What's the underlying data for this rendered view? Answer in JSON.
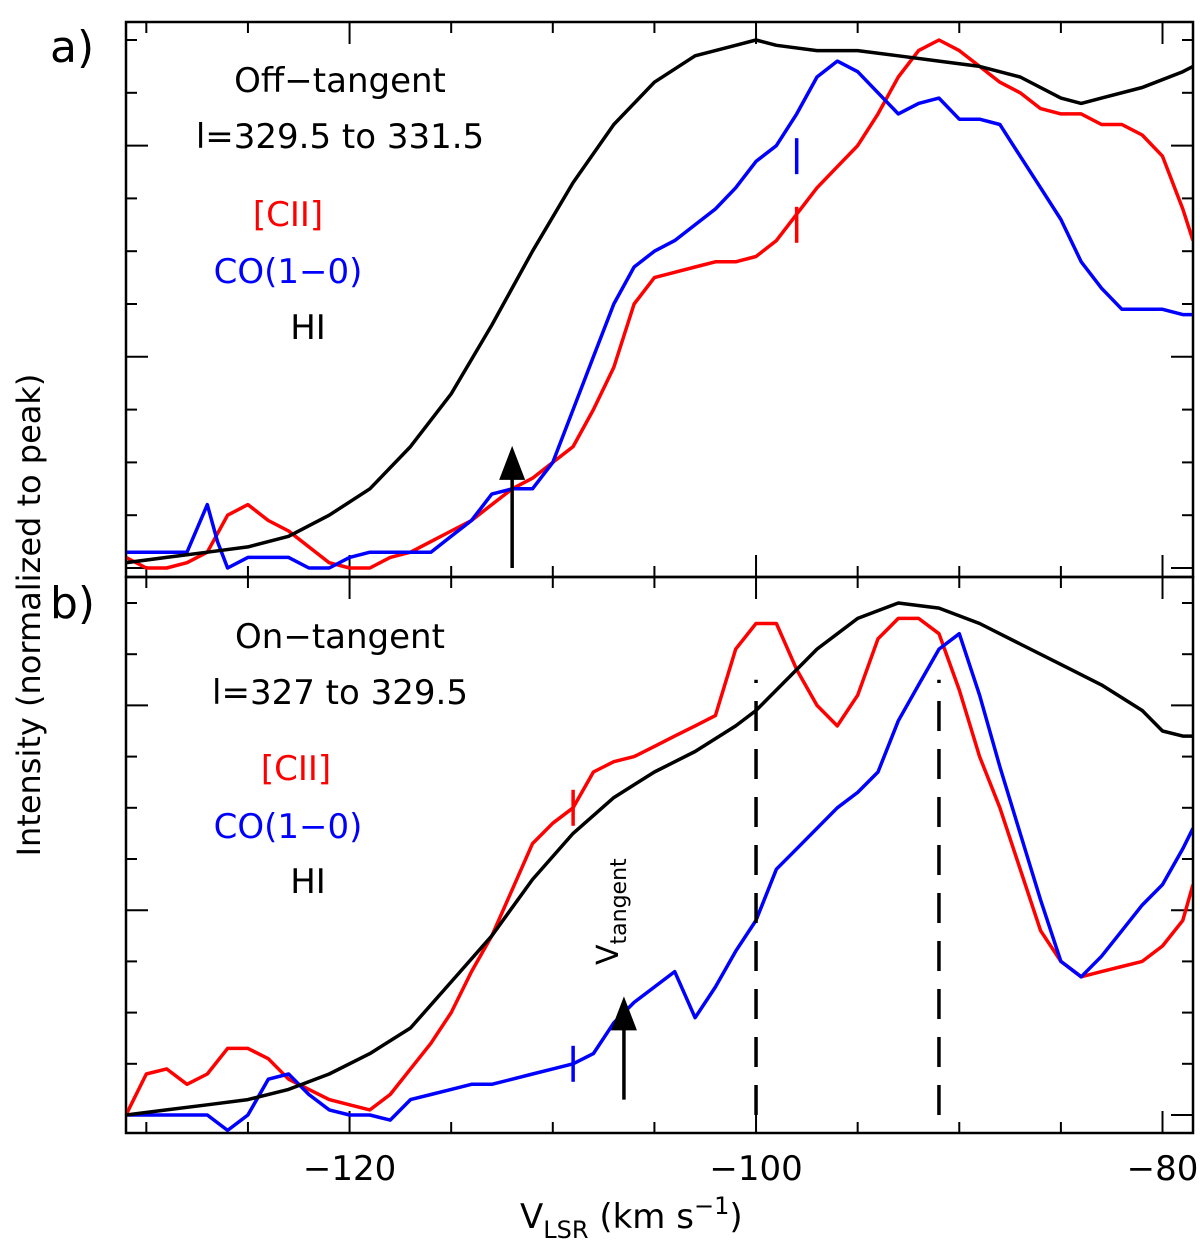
{
  "figure": {
    "ylabel": "Intensity (normalized to peak)",
    "xlabel_main": "V",
    "xlabel_sub": "LSR",
    "xlabel_units": " (km s",
    "xlabel_exp": "−1",
    "xlabel_close": ")",
    "colors": {
      "cii": "#ff0000",
      "co": "#0000ff",
      "hi": "#000000"
    }
  },
  "chart_data": [
    {
      "type": "line",
      "panel": "a)",
      "title_line1": "Off−tangent",
      "title_line2": "l=329.5 to 331.5",
      "legend": [
        "[CII]",
        "CO(1−0)",
        "HI"
      ],
      "xlim": [
        -131,
        -78.5
      ],
      "ylim": [
        0,
        1
      ],
      "xticks": [
        -120,
        -100,
        -80
      ],
      "series": [
        {
          "name": "[CII]",
          "key": "cii",
          "x": [
            -131,
            -130,
            -129,
            -128,
            -127,
            -126,
            -125,
            -124,
            -123,
            -122,
            -121,
            -120,
            -119,
            -118,
            -117,
            -116,
            -115,
            -114,
            -113,
            -112,
            -111,
            -110,
            -109,
            -108,
            -107,
            -106,
            -105,
            -104,
            -103,
            -102,
            -101,
            -100,
            -99,
            -98,
            -97,
            -96,
            -95,
            -94,
            -93,
            -92,
            -91,
            -90,
            -89,
            -88,
            -87,
            -86,
            -85,
            -84,
            -83,
            -82,
            -81,
            -80,
            -79,
            -78.5
          ],
          "values": [
            0.02,
            0.0,
            0.0,
            0.01,
            0.03,
            0.1,
            0.12,
            0.09,
            0.07,
            0.04,
            0.01,
            0.0,
            0.0,
            0.02,
            0.03,
            0.05,
            0.07,
            0.09,
            0.12,
            0.15,
            0.17,
            0.2,
            0.23,
            0.3,
            0.38,
            0.5,
            0.55,
            0.56,
            0.57,
            0.58,
            0.58,
            0.59,
            0.62,
            0.67,
            0.72,
            0.76,
            0.8,
            0.86,
            0.93,
            0.98,
            1.0,
            0.98,
            0.95,
            0.92,
            0.9,
            0.87,
            0.86,
            0.86,
            0.84,
            0.84,
            0.82,
            0.78,
            0.68,
            0.62
          ]
        },
        {
          "name": "CO(1−0)",
          "key": "co",
          "x": [
            -131,
            -130,
            -129,
            -128,
            -127,
            -126.5,
            -126,
            -125,
            -124,
            -123,
            -122,
            -121,
            -120,
            -119,
            -118,
            -117,
            -116,
            -115,
            -114,
            -113,
            -112,
            -111,
            -110,
            -109,
            -108,
            -107,
            -106,
            -105,
            -104,
            -103,
            -102,
            -101,
            -100,
            -99,
            -98,
            -97,
            -96,
            -95,
            -94,
            -93,
            -92,
            -91,
            -90,
            -89,
            -88,
            -87,
            -86,
            -85,
            -84,
            -83,
            -82,
            -81,
            -80,
            -79,
            -78.5
          ],
          "values": [
            0.03,
            0.03,
            0.03,
            0.03,
            0.12,
            0.05,
            0.0,
            0.02,
            0.02,
            0.02,
            0.0,
            0.0,
            0.02,
            0.03,
            0.03,
            0.03,
            0.03,
            0.06,
            0.09,
            0.14,
            0.15,
            0.15,
            0.2,
            0.3,
            0.4,
            0.5,
            0.57,
            0.6,
            0.62,
            0.65,
            0.68,
            0.72,
            0.77,
            0.8,
            0.86,
            0.93,
            0.96,
            0.94,
            0.9,
            0.86,
            0.88,
            0.89,
            0.85,
            0.85,
            0.84,
            0.78,
            0.72,
            0.66,
            0.58,
            0.53,
            0.49,
            0.49,
            0.49,
            0.48,
            0.48
          ]
        },
        {
          "name": "HI",
          "key": "hi",
          "x": [
            -131,
            -129,
            -127,
            -125,
            -123,
            -121,
            -119,
            -117,
            -115,
            -113,
            -111,
            -109,
            -107,
            -105,
            -103,
            -101,
            -100,
            -99,
            -97,
            -95,
            -93,
            -91,
            -89,
            -87,
            -85,
            -84,
            -83,
            -81,
            -79,
            -78.5
          ],
          "values": [
            0.01,
            0.02,
            0.03,
            0.04,
            0.06,
            0.1,
            0.15,
            0.23,
            0.33,
            0.46,
            0.6,
            0.73,
            0.84,
            0.92,
            0.97,
            0.99,
            1.0,
            0.99,
            0.98,
            0.98,
            0.97,
            0.96,
            0.95,
            0.93,
            0.89,
            0.88,
            0.89,
            0.91,
            0.94,
            0.95
          ]
        }
      ],
      "annotations": [
        {
          "type": "arrow",
          "x": -112,
          "y_from": 0.0,
          "y_to": 0.22
        },
        {
          "type": "tick_mark",
          "series": "co",
          "x": -98,
          "y": 0.78
        },
        {
          "type": "tick_mark",
          "series": "cii",
          "x": -98,
          "y": 0.65
        }
      ]
    },
    {
      "type": "line",
      "panel": "b)",
      "title_line1": "On−tangent",
      "title_line2": "l=327 to 329.5",
      "legend": [
        "[CII]",
        "CO(1−0)",
        "HI"
      ],
      "xlim": [
        -131,
        -78.5
      ],
      "ylim": [
        0,
        1
      ],
      "xticks": [
        -120,
        -100,
        -80
      ],
      "vtangent_label": "V",
      "vtangent_sub": "tangent",
      "series": [
        {
          "name": "[CII]",
          "key": "cii",
          "x": [
            -131,
            -130,
            -129,
            -128,
            -127,
            -126,
            -125,
            -124,
            -123,
            -122,
            -121,
            -120,
            -119,
            -118,
            -117,
            -116,
            -115,
            -114,
            -113,
            -112,
            -111,
            -110,
            -109,
            -108,
            -107,
            -106,
            -105,
            -104,
            -103,
            -102,
            -101,
            -100,
            -99,
            -98,
            -97,
            -96,
            -95,
            -94,
            -93,
            -92,
            -91,
            -90,
            -89,
            -88,
            -87,
            -86,
            -85,
            -84,
            -83,
            -82,
            -81,
            -80,
            -79,
            -78.5
          ],
          "values": [
            0.0,
            0.08,
            0.09,
            0.06,
            0.08,
            0.13,
            0.13,
            0.11,
            0.07,
            0.05,
            0.03,
            0.02,
            0.01,
            0.04,
            0.09,
            0.14,
            0.2,
            0.28,
            0.35,
            0.44,
            0.53,
            0.57,
            0.6,
            0.67,
            0.69,
            0.7,
            0.72,
            0.74,
            0.76,
            0.78,
            0.91,
            0.96,
            0.96,
            0.87,
            0.8,
            0.76,
            0.82,
            0.93,
            0.97,
            0.97,
            0.94,
            0.83,
            0.7,
            0.6,
            0.48,
            0.36,
            0.3,
            0.27,
            0.28,
            0.29,
            0.3,
            0.33,
            0.38,
            0.45
          ]
        },
        {
          "name": "CO(1−0)",
          "key": "co",
          "x": [
            -131,
            -130,
            -129,
            -128,
            -127,
            -126,
            -125,
            -124,
            -123,
            -122,
            -121,
            -120,
            -119,
            -118,
            -117,
            -116,
            -115,
            -114,
            -113,
            -112,
            -111,
            -110,
            -109,
            -108,
            -107,
            -106,
            -105,
            -104,
            -103,
            -102,
            -101,
            -100,
            -99,
            -98,
            -97,
            -96,
            -95,
            -94,
            -93,
            -92,
            -91,
            -90,
            -89,
            -88,
            -87,
            -86,
            -85,
            -84,
            -83,
            -82,
            -81,
            -80,
            -79,
            -78.5
          ],
          "values": [
            0.0,
            0.0,
            0.0,
            0.0,
            0.0,
            -0.03,
            0.0,
            0.07,
            0.08,
            0.04,
            0.01,
            0.0,
            0.0,
            -0.01,
            0.03,
            0.04,
            0.05,
            0.06,
            0.06,
            0.07,
            0.08,
            0.09,
            0.1,
            0.12,
            0.18,
            0.22,
            0.25,
            0.28,
            0.19,
            0.25,
            0.32,
            0.38,
            0.48,
            0.52,
            0.56,
            0.6,
            0.63,
            0.67,
            0.77,
            0.84,
            0.91,
            0.94,
            0.82,
            0.68,
            0.55,
            0.42,
            0.3,
            0.27,
            0.31,
            0.36,
            0.41,
            0.45,
            0.52,
            0.56
          ]
        },
        {
          "name": "HI",
          "key": "hi",
          "x": [
            -131,
            -129,
            -127,
            -125,
            -123,
            -121,
            -119,
            -117,
            -115,
            -113,
            -111,
            -109,
            -107,
            -105,
            -103,
            -101,
            -100,
            -99,
            -97,
            -95,
            -93,
            -91,
            -89,
            -87,
            -85,
            -83,
            -81,
            -80,
            -79,
            -78.5
          ],
          "values": [
            0.0,
            0.01,
            0.02,
            0.03,
            0.05,
            0.08,
            0.12,
            0.17,
            0.26,
            0.35,
            0.46,
            0.55,
            0.62,
            0.67,
            0.71,
            0.76,
            0.79,
            0.83,
            0.91,
            0.97,
            1.0,
            0.99,
            0.96,
            0.92,
            0.88,
            0.84,
            0.79,
            0.75,
            0.74,
            0.74
          ]
        }
      ],
      "annotations": [
        {
          "type": "arrow",
          "x": -106.5,
          "y_from": 0.03,
          "y_to": 0.22
        },
        {
          "type": "tick_mark",
          "series": "cii",
          "x": -109,
          "y": 0.6
        },
        {
          "type": "tick_mark",
          "series": "co",
          "x": -109,
          "y": 0.1
        },
        {
          "type": "dashed_vline",
          "x": -100,
          "y_from": 0.0,
          "y_to": 0.85
        },
        {
          "type": "dashed_vline",
          "x": -91,
          "y_from": 0.0,
          "y_to": 0.85
        }
      ]
    }
  ]
}
